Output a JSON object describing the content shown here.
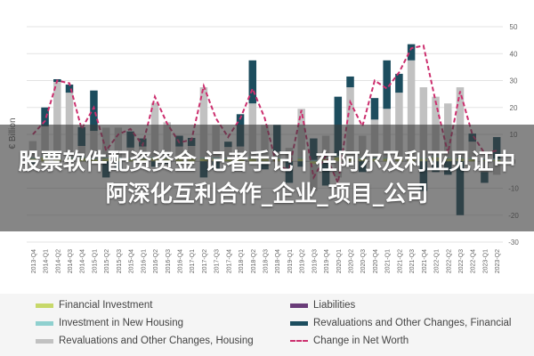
{
  "banner": {
    "line1": "股票软件配资资金 记者手记丨在阿尔及利亚见证中",
    "line2": "阿深化互利合作_企业_项目_公司"
  },
  "colors": {
    "financial_investment": "#c7d86a",
    "investment_new_housing": "#8fd0cf",
    "revaluations_housing": "#c1c1c1",
    "liabilities": "#6a3d79",
    "revaluations_financial": "#1c4d5e",
    "net_worth": "#cc2f6e"
  },
  "chart_data": {
    "type": "bar",
    "stacked": true,
    "ylabel": "€ Billion",
    "ylim": [
      -30,
      50
    ],
    "yticks": [
      -30,
      -20,
      -10,
      0,
      10,
      20,
      30,
      40,
      50
    ],
    "grid": true,
    "legend_position": "bottom",
    "categories": [
      "2013-Q4",
      "2014-Q1",
      "2014-Q2",
      "2014-Q3",
      "2014-Q4",
      "2015-Q1",
      "2015-Q2",
      "2015-Q3",
      "2015-Q4",
      "2016-Q1",
      "2016-Q2",
      "2016-Q3",
      "2016-Q4",
      "2017-Q1",
      "2017-Q2",
      "2017-Q3",
      "2017-Q4",
      "2018-Q1",
      "2018-Q2",
      "2018-Q3",
      "2018-Q4",
      "2019-Q1",
      "2019-Q2",
      "2019-Q3",
      "2019-Q4",
      "2020-Q1",
      "2020-Q2",
      "2020-Q3",
      "2020-Q4",
      "2021-Q1",
      "2021-Q2",
      "2021-Q3",
      "2021-Q4",
      "2022-Q1",
      "2022-Q2",
      "2022-Q3",
      "2022-Q4",
      "2023-Q1",
      "2023-Q2"
    ],
    "series": [
      {
        "name": "Financial Investment",
        "kind": "bar",
        "color_key": "financial_investment",
        "values": [
          1,
          1.5,
          1,
          1,
          1.2,
          0.8,
          1,
          1,
          0.6,
          1,
          1.2,
          1,
          1,
          1.2,
          1,
          1,
          0.8,
          1,
          1,
          1,
          1,
          0.5,
          1,
          -1,
          1,
          1.5,
          1,
          1,
          1,
          1,
          1,
          1,
          1,
          1.5,
          1,
          1,
          0.8,
          0.5,
          0.5
        ]
      },
      {
        "name": "Investment in New Housing",
        "kind": "bar",
        "color_key": "investment_new_housing",
        "values": [
          0.5,
          0.5,
          0.5,
          0.5,
          0.5,
          0.5,
          0.5,
          0.5,
          0.5,
          0.5,
          0.5,
          0.5,
          0.5,
          0.5,
          0.5,
          0.5,
          0.5,
          0.5,
          0.5,
          0.5,
          0.5,
          0.5,
          0.5,
          0.5,
          0.5,
          0.5,
          0.5,
          0.5,
          0.5,
          0.5,
          0.5,
          0.5,
          0.5,
          0.5,
          0.5,
          0.5,
          0.5,
          0.5,
          0.5
        ]
      },
      {
        "name": "Revaluations and Other Changes, Housing",
        "kind": "bar",
        "color_key": "revaluations_housing",
        "values": [
          6,
          11,
          28,
          24,
          4,
          10,
          11,
          11,
          4,
          4,
          20,
          13,
          4,
          4,
          26,
          12,
          4,
          4,
          20,
          12,
          2,
          4,
          18,
          -10,
          8,
          -6,
          26,
          8,
          14,
          18,
          24,
          36,
          26,
          22,
          20,
          26,
          6,
          -4,
          -5
        ]
      },
      {
        "name": "Liabilities",
        "kind": "bar",
        "color_key": "liabilities",
        "values": [
          0,
          0,
          0,
          0,
          0,
          0,
          0,
          0,
          0,
          0,
          0,
          0,
          0,
          0,
          0,
          0,
          0,
          0,
          0,
          0,
          0,
          0,
          0,
          0,
          0,
          0,
          0,
          0,
          0,
          0,
          0,
          0,
          0,
          0,
          0,
          0,
          0,
          0,
          0
        ]
      },
      {
        "name": "Revaluations and Other Changes, Financial",
        "kind": "bar",
        "color_key": "revaluations_financial",
        "values": [
          -1,
          7,
          1,
          3,
          7,
          15,
          -6,
          -3,
          6,
          3,
          -2,
          -1,
          4,
          3,
          -6,
          -3,
          2,
          12,
          16,
          -3,
          10,
          -8,
          -2,
          8,
          -9,
          22,
          4,
          -4,
          8,
          18,
          7,
          6,
          -11,
          -4,
          -5,
          -20,
          3,
          -4,
          8
        ]
      },
      {
        "name": "Change in Net Worth",
        "kind": "line",
        "color_key": "net_worth",
        "values": [
          10,
          15,
          30,
          29,
          12,
          20,
          4,
          10,
          12,
          6,
          24,
          14,
          7,
          8,
          28,
          16,
          9,
          16,
          27,
          16,
          -2,
          -3,
          19,
          -6,
          2,
          -8,
          22,
          13,
          30,
          27,
          33,
          42,
          43,
          22,
          3,
          26,
          10,
          3,
          4
        ]
      }
    ]
  }
}
